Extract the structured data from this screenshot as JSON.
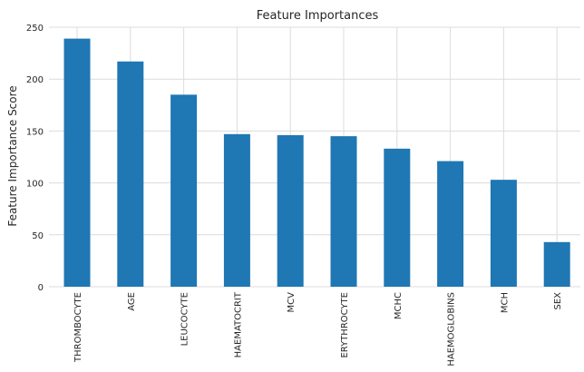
{
  "chart_data": {
    "type": "bar",
    "title": "Feature Importances",
    "xlabel": "",
    "ylabel": "Feature Importance Score",
    "categories": [
      "THROMBOCYTE",
      "AGE",
      "LEUCOCYTE",
      "HAEMATOCRIT",
      "MCV",
      "ERYTHROCYTE",
      "MCHC",
      "HAEMOGLOBINS",
      "MCH",
      "SEX"
    ],
    "values": [
      239,
      217,
      185,
      147,
      146,
      145,
      133,
      121,
      103,
      43
    ],
    "ylim": [
      0,
      250
    ],
    "yticks": [
      0,
      50,
      100,
      150,
      200,
      250
    ],
    "grid": true,
    "bar_color": "#1f77b4",
    "x_tick_rotation": "vertical"
  }
}
